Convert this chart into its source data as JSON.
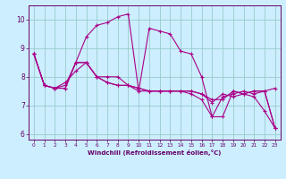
{
  "xlabel": "Windchill (Refroidissement éolien,°C)",
  "background_color": "#cceeff",
  "grid_color": "#99cccc",
  "line_color": "#aa0088",
  "xlim": [
    -0.5,
    23.5
  ],
  "ylim": [
    5.8,
    10.5
  ],
  "xticks": [
    0,
    1,
    2,
    3,
    4,
    5,
    6,
    7,
    8,
    9,
    10,
    11,
    12,
    13,
    14,
    15,
    16,
    17,
    18,
    19,
    20,
    21,
    22,
    23
  ],
  "yticks": [
    6,
    7,
    8,
    9,
    10
  ],
  "series": [
    {
      "x": [
        0,
        1,
        2,
        3,
        4,
        5,
        6,
        7,
        8,
        9,
        10,
        11,
        12,
        13,
        14,
        15,
        16,
        17,
        18,
        19,
        20,
        21,
        22,
        23
      ],
      "y": [
        8.8,
        7.7,
        7.6,
        7.7,
        8.5,
        9.4,
        9.8,
        9.9,
        10.1,
        10.2,
        7.5,
        9.7,
        9.6,
        9.5,
        8.9,
        8.8,
        8.0,
        6.6,
        6.6,
        7.5,
        7.4,
        7.5,
        7.5,
        6.2
      ]
    },
    {
      "x": [
        0,
        1,
        2,
        3,
        4,
        5,
        6,
        7,
        8,
        9,
        10,
        11,
        12,
        13,
        14,
        15,
        16,
        17,
        18,
        19,
        20,
        21,
        22,
        23
      ],
      "y": [
        8.8,
        7.7,
        7.6,
        7.8,
        8.2,
        8.5,
        8.0,
        8.0,
        8.0,
        7.7,
        7.6,
        7.5,
        7.5,
        7.5,
        7.5,
        7.5,
        7.4,
        7.2,
        7.2,
        7.5,
        7.4,
        7.5,
        7.5,
        7.6
      ]
    },
    {
      "x": [
        0,
        1,
        2,
        3,
        4,
        5,
        6,
        7,
        8,
        9,
        10,
        11,
        12,
        13,
        14,
        15,
        16,
        17,
        18,
        19,
        20,
        21,
        22,
        23
      ],
      "y": [
        8.8,
        7.7,
        7.6,
        7.6,
        8.5,
        8.5,
        8.0,
        7.8,
        7.7,
        7.7,
        7.6,
        7.5,
        7.5,
        7.5,
        7.5,
        7.5,
        7.4,
        7.1,
        7.4,
        7.3,
        7.4,
        7.3,
        6.8,
        6.2
      ]
    },
    {
      "x": [
        0,
        1,
        2,
        3,
        4,
        5,
        6,
        7,
        8,
        9,
        10,
        11,
        12,
        13,
        14,
        15,
        16,
        17,
        18,
        19,
        20,
        21,
        22,
        23
      ],
      "y": [
        8.8,
        7.7,
        7.6,
        7.6,
        8.5,
        8.5,
        8.0,
        7.8,
        7.7,
        7.7,
        7.5,
        7.5,
        7.5,
        7.5,
        7.5,
        7.4,
        7.2,
        6.6,
        7.3,
        7.4,
        7.5,
        7.4,
        7.5,
        6.2
      ]
    }
  ]
}
